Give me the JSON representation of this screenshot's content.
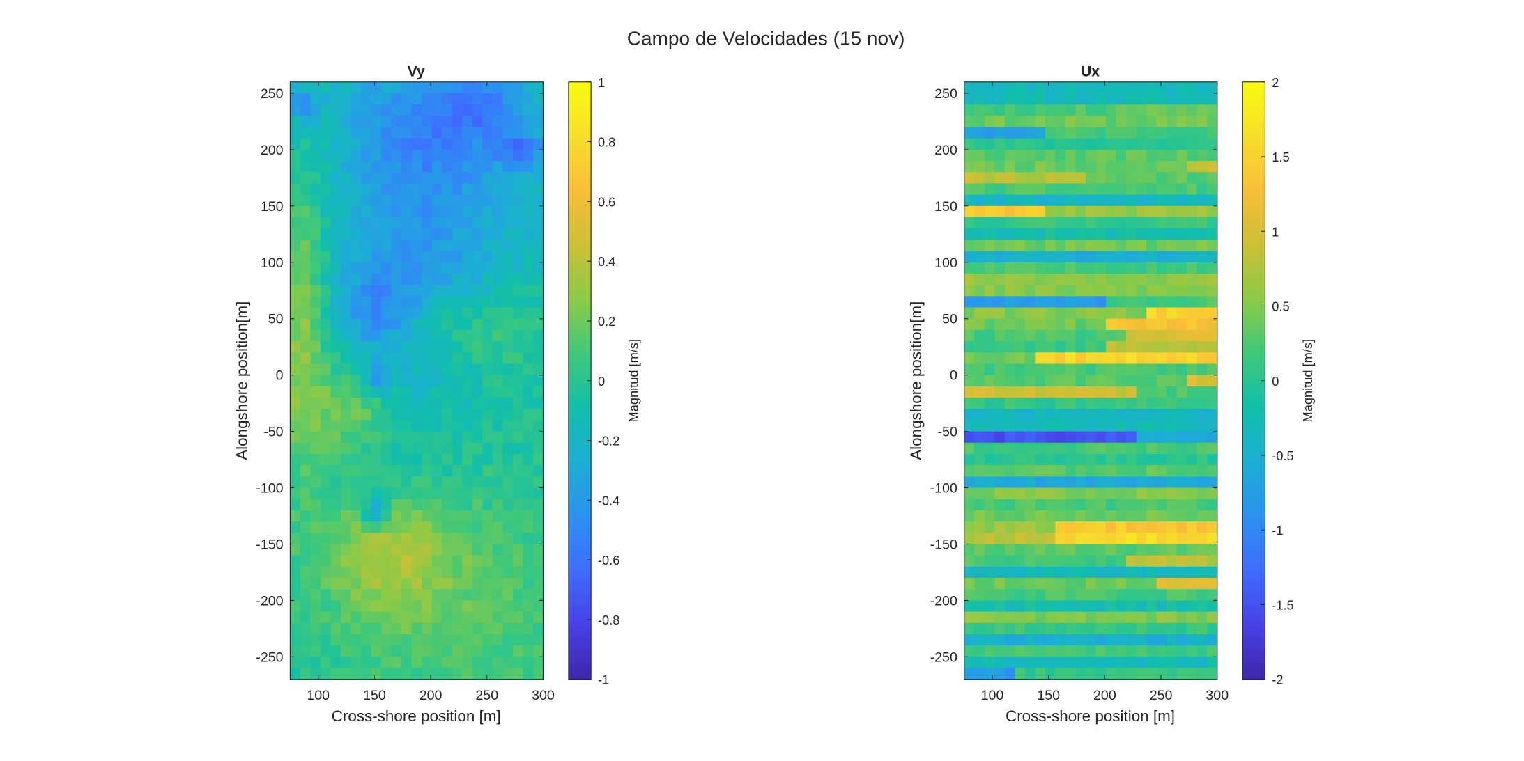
{
  "figure_title": "Campo de Velocidades (15 nov)",
  "colormap": [
    "#3e26a8",
    "#4741e7",
    "#3e6dfe",
    "#2c92f0",
    "#1caed3",
    "#12bfaa",
    "#3fc87a",
    "#8bca48",
    "#cbc035",
    "#f9bd38",
    "#f7df2a",
    "#f9fb0e"
  ],
  "chart_data": [
    {
      "type": "heatmap",
      "title": "Vy",
      "xlabel": "Cross-shore position [m]",
      "ylabel": "Alongshore position[m]",
      "xlim": [
        75,
        300
      ],
      "ylim": [
        -270,
        260
      ],
      "xticks": [
        100,
        150,
        200,
        250,
        300
      ],
      "yticks": [
        -250,
        -200,
        -150,
        -100,
        -50,
        0,
        50,
        100,
        150,
        200,
        250
      ],
      "grid": false,
      "colorbar": {
        "label": "Magnitud [m/s]",
        "limits": [
          -1,
          1
        ],
        "ticks": [
          -1,
          -0.8,
          -0.6,
          -0.4,
          -0.2,
          0,
          0.2,
          0.4,
          0.6,
          0.8,
          1
        ],
        "tick_labels": [
          "-1",
          "-0.8",
          "-0.6",
          "-0.4",
          "-0.2",
          "0",
          "0.2",
          "0.4",
          "0.6",
          "0.8",
          "1"
        ]
      },
      "cell_size_x": 9,
      "cell_size_y": 10,
      "field": {
        "base": -0.05,
        "blobs": [
          {
            "x": 220,
            "y": 225,
            "sx": 70,
            "sy": 45,
            "a": -0.35
          },
          {
            "x": 245,
            "y": 240,
            "sx": 25,
            "sy": 20,
            "a": -0.2
          },
          {
            "x": 175,
            "y": 100,
            "sx": 45,
            "sy": 110,
            "a": -0.25
          },
          {
            "x": 150,
            "y": 55,
            "sx": 25,
            "sy": 30,
            "a": -0.25
          },
          {
            "x": 240,
            "y": 120,
            "sx": 60,
            "sy": 60,
            "a": -0.15
          },
          {
            "x": 280,
            "y": 200,
            "sx": 12,
            "sy": 10,
            "a": -0.35
          },
          {
            "x": 85,
            "y": 40,
            "sx": 15,
            "sy": 90,
            "a": 0.35
          },
          {
            "x": 130,
            "y": -30,
            "sx": 25,
            "sy": 30,
            "a": 0.3
          },
          {
            "x": 160,
            "y": -160,
            "sx": 40,
            "sy": 35,
            "a": 0.3
          },
          {
            "x": 220,
            "y": -200,
            "sx": 90,
            "sy": 80,
            "a": 0.2
          },
          {
            "x": 235,
            "y": 40,
            "sx": 55,
            "sy": 25,
            "a": 0.2
          },
          {
            "x": 150,
            "y": -120,
            "sx": 8,
            "sy": 10,
            "a": -0.4
          },
          {
            "x": 150,
            "y": -5,
            "sx": 8,
            "sy": 10,
            "a": -0.3
          },
          {
            "x": 85,
            "y": 240,
            "sx": 12,
            "sy": 12,
            "a": -0.35
          }
        ],
        "noise": 0.08,
        "seed": 7
      }
    },
    {
      "type": "heatmap",
      "title": "Ux",
      "xlabel": "Cross-shore position [m]",
      "ylabel": "Alongshore position[m]",
      "xlim": [
        75,
        300
      ],
      "ylim": [
        -270,
        260
      ],
      "xticks": [
        100,
        150,
        200,
        250,
        300
      ],
      "yticks": [
        -250,
        -200,
        -150,
        -100,
        -50,
        0,
        50,
        100,
        150,
        200,
        250
      ],
      "grid": false,
      "colorbar": {
        "label": "Magnitud [m/s]",
        "limits": [
          -2,
          2
        ],
        "ticks": [
          -2,
          -1.5,
          -1,
          -0.5,
          0,
          0.5,
          1,
          1.5,
          2
        ],
        "tick_labels": [
          "-2",
          "-1.5",
          "-1",
          "-0.5",
          "0",
          "0.5",
          "1",
          "1.5",
          "2"
        ]
      },
      "cell_size_x": 9,
      "cell_size_y": 10,
      "field": {
        "base": 0,
        "rows": [
          {
            "y": 250,
            "v": -0.3
          },
          {
            "y": 240,
            "v": 0.2,
            "x0": 200,
            "v2": 0.4
          },
          {
            "y": 230,
            "v": 0.4
          },
          {
            "y": 220,
            "v": -0.7,
            "x0": 150,
            "v2": 0.2
          },
          {
            "y": 210,
            "v": 0.0
          },
          {
            "y": 200,
            "v": 0.3
          },
          {
            "y": 190,
            "v": 0.4,
            "x0": 270,
            "v2": 0.9
          },
          {
            "y": 180,
            "v": 0.8,
            "x0": 180,
            "v2": 0.3
          },
          {
            "y": 170,
            "v": 0.2
          },
          {
            "y": 160,
            "v": -0.4
          },
          {
            "y": 150,
            "v": 1.4,
            "x0": 145,
            "v2": 0.6
          },
          {
            "y": 140,
            "v": 0.1
          },
          {
            "y": 130,
            "v": -0.2
          },
          {
            "y": 120,
            "v": 0.4
          },
          {
            "y": 110,
            "v": -0.5
          },
          {
            "y": 100,
            "v": 0.2
          },
          {
            "y": 90,
            "v": 0.6
          },
          {
            "y": 80,
            "v": 0.5
          },
          {
            "y": 70,
            "v": -0.8,
            "x0": 200,
            "v2": 0.2
          },
          {
            "y": 60,
            "v": 0.5,
            "x0": 240,
            "v2": 1.5
          },
          {
            "y": 50,
            "v": 0.4,
            "x0": 200,
            "v2": 1.3
          },
          {
            "y": 40,
            "v": 0.2,
            "x0": 220,
            "v2": 1.0
          },
          {
            "y": 30,
            "v": 0.1,
            "x0": 200,
            "v2": 0.8
          },
          {
            "y": 20,
            "v": 0.4,
            "x0": 140,
            "v2": 1.5
          },
          {
            "y": 10,
            "v": 0.2
          },
          {
            "y": 0,
            "v": 0.3,
            "x0": 270,
            "v2": 1.0
          },
          {
            "y": -10,
            "v": 0.9,
            "x0": 230,
            "v2": 0.2
          },
          {
            "y": -20,
            "v": 0.1
          },
          {
            "y": -30,
            "v": -0.4
          },
          {
            "y": -40,
            "v": -0.3
          },
          {
            "y": -50,
            "v": -1.5,
            "x0": 230,
            "v2": -0.6
          },
          {
            "y": -60,
            "v": 0.2
          },
          {
            "y": -70,
            "v": 0.0
          },
          {
            "y": -80,
            "v": 0.3
          },
          {
            "y": -90,
            "v": -0.6
          },
          {
            "y": -100,
            "v": 0.5
          },
          {
            "y": -110,
            "v": 0.2
          },
          {
            "y": -120,
            "v": 0.4
          },
          {
            "y": -130,
            "v": 0.6,
            "x0": 160,
            "v2": 1.4
          },
          {
            "y": -140,
            "v": 0.8,
            "x0": 160,
            "v2": 1.6
          },
          {
            "y": -150,
            "v": 0.3
          },
          {
            "y": -160,
            "v": 0.2,
            "x0": 220,
            "v2": 0.8
          },
          {
            "y": -170,
            "v": -0.3
          },
          {
            "y": -180,
            "v": 0.4,
            "x0": 250,
            "v2": 1.1
          },
          {
            "y": -190,
            "v": 0.2
          },
          {
            "y": -200,
            "v": -0.2
          },
          {
            "y": -210,
            "v": 0.5
          },
          {
            "y": -220,
            "v": 0.1
          },
          {
            "y": -230,
            "v": -0.5
          },
          {
            "y": -240,
            "v": 0.2
          },
          {
            "y": -250,
            "v": -0.3
          },
          {
            "y": -260,
            "v": -0.8,
            "x0": 120,
            "v2": 0.1
          }
        ],
        "noise": 0.15,
        "seed": 11
      }
    }
  ]
}
